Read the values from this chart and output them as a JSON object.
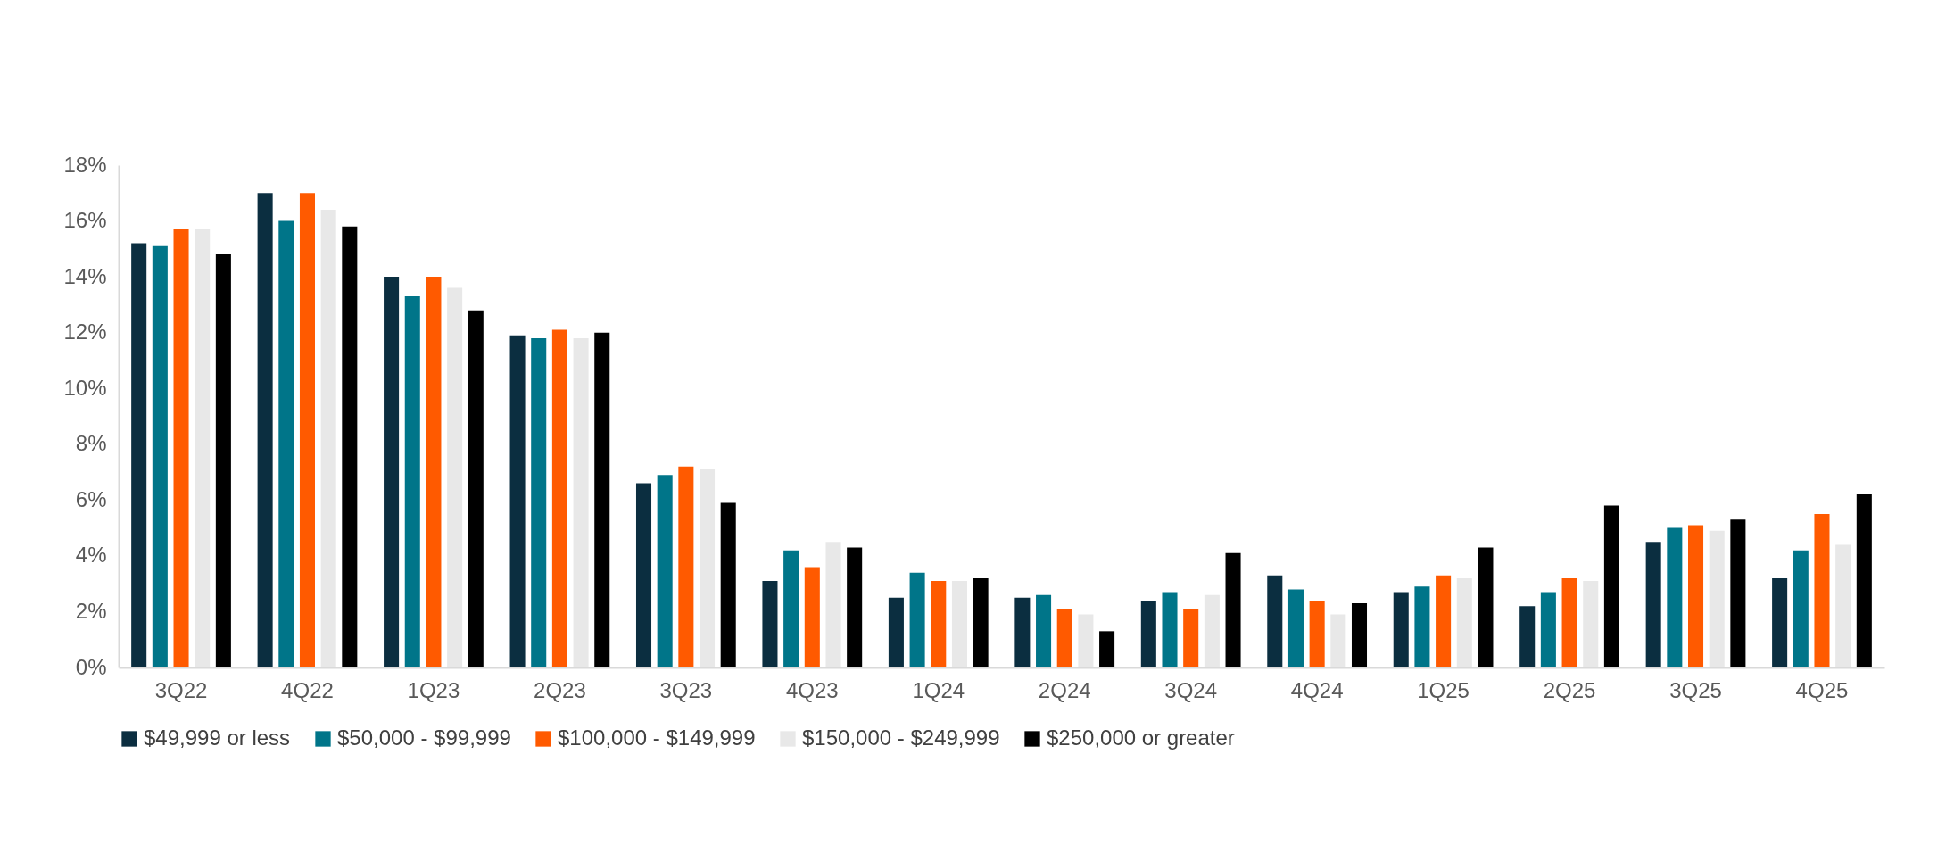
{
  "chart_data": {
    "type": "bar",
    "categories": [
      "3Q22",
      "4Q22",
      "1Q23",
      "2Q23",
      "3Q23",
      "4Q23",
      "1Q24",
      "2Q24",
      "3Q24",
      "4Q24",
      "1Q25",
      "2Q25",
      "3Q25",
      "4Q25"
    ],
    "series": [
      {
        "name": "$49,999 or less",
        "color": "#0b2e40",
        "values": [
          15.2,
          17.0,
          14.0,
          11.9,
          6.6,
          3.1,
          2.5,
          2.5,
          2.4,
          3.3,
          2.7,
          2.2,
          4.5,
          3.2
        ]
      },
      {
        "name": "$50,000 - $99,999",
        "color": "#007589",
        "values": [
          15.1,
          16.0,
          13.3,
          11.8,
          6.9,
          4.2,
          3.4,
          2.6,
          2.7,
          2.8,
          2.9,
          2.7,
          5.0,
          4.2
        ]
      },
      {
        "name": "$100,000 - $149,999",
        "color": "#ff5a00",
        "values": [
          15.7,
          17.0,
          14.0,
          12.1,
          7.2,
          3.6,
          3.1,
          2.1,
          2.1,
          2.4,
          3.3,
          3.2,
          5.1,
          5.5
        ]
      },
      {
        "name": "$150,000 - $249,999",
        "color": "#e8e8e8",
        "values": [
          15.7,
          16.4,
          13.6,
          11.8,
          7.1,
          4.5,
          3.1,
          1.9,
          2.6,
          1.9,
          3.2,
          3.1,
          4.9,
          4.4
        ]
      },
      {
        "name": "$250,000 or greater",
        "color": "#000000",
        "values": [
          14.8,
          15.8,
          12.8,
          12.0,
          5.9,
          4.3,
          3.2,
          1.3,
          4.1,
          2.3,
          4.3,
          5.8,
          5.3,
          6.2
        ]
      }
    ],
    "ylim": [
      0,
      18
    ],
    "yticks": [
      {
        "value": 0,
        "label": "0%"
      },
      {
        "value": 2,
        "label": "2%"
      },
      {
        "value": 4,
        "label": "4%"
      },
      {
        "value": 6,
        "label": "6%"
      },
      {
        "value": 8,
        "label": "8%"
      },
      {
        "value": 10,
        "label": "10%"
      },
      {
        "value": 12,
        "label": "12%"
      },
      {
        "value": 14,
        "label": "14%"
      },
      {
        "value": 16,
        "label": "16%"
      },
      {
        "value": 18,
        "label": "18%"
      }
    ],
    "grid": false,
    "legend": "bottom"
  }
}
